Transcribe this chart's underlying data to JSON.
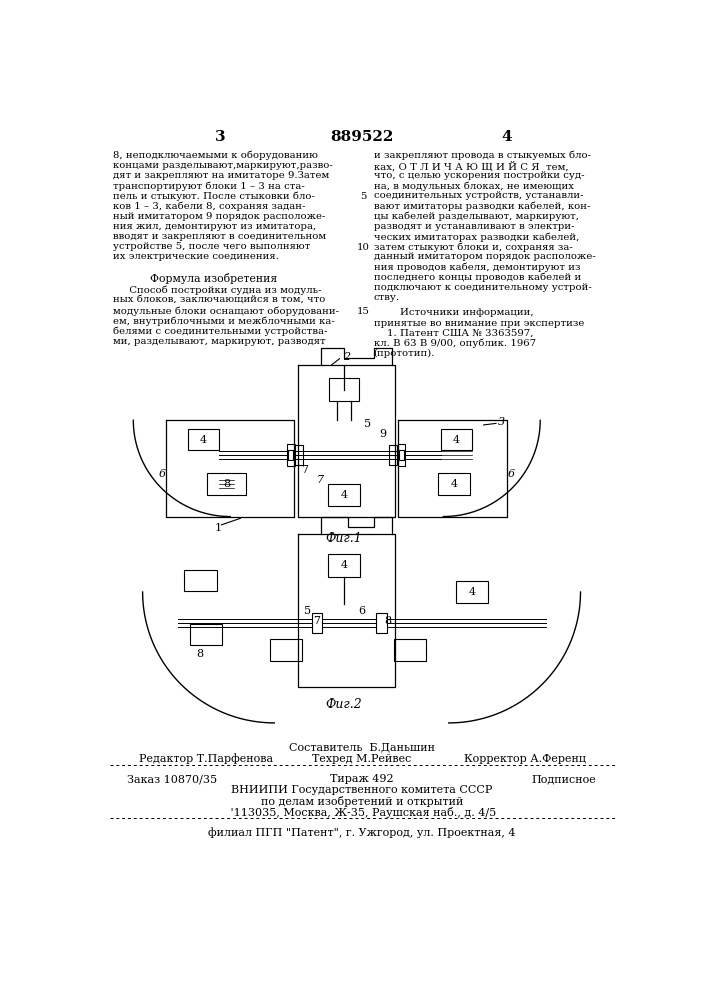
{
  "page_number_left": "3",
  "page_number_center": "889522",
  "page_number_right": "4",
  "bg_color": "#ffffff",
  "text_color": "#000000",
  "col1_lines": [
    "8, неподключаемыми к оборудованию",
    "концами разделывают,маркируют,разво-",
    "дят и закрепляют на имитаторе 9.Затем",
    "транспортируют блоки 1 – 3 на ста-",
    "пель и стыкуют. После стыковки бло-",
    "ков 1 – 3, кабели 8, сохраняя задан-",
    "ный имитатором 9 порядок расположе-",
    "ния жил, демонтируют из имитатора,",
    "вводят и закрепляют в соединительном",
    "устройстве 5, после чего выполняют",
    "их электрические соединения."
  ],
  "formula_header": "Формула изобретения",
  "formula_lines": [
    "     Способ постройки судна из модуль-",
    "ных блоков, заключающийся в том, что",
    "модульные блоки оснащают оборудовани-",
    "ем, внутриблочными и межблочными ка-",
    "белями с соединительными устройства-",
    "ми, разделывают, маркируют, разводят"
  ],
  "col2_lines": [
    "и закрепляют провода в стыкуемых бло-",
    "ках, О Т Л И Ч А Ю Щ И Й С Я  тем,",
    "что, с целью ускорения постройки суд-",
    "на, в модульных блоках, не имеющих",
    "соединительных устройств, устанавли-",
    "вают имитаторы разводки кабелей, кон-",
    "цы кабелей разделывают, маркируют,",
    "разводят и устанавливают в электри-",
    "ческих имитаторах разводки кабелей,",
    "затем стыкуют блоки и, сохраняя за-",
    "данный имитатором порядок расположе-",
    "ния проводов кабеля, демонтируют из",
    "последнего концы проводов кабелей и",
    "подключают к соединительному устрой-",
    "ству."
  ],
  "sources_header": "        Источники информации,",
  "sources_lines": [
    "принятые во внимание при экспертизе",
    "    1. Патент США № 3363597,",
    "кл. В 63 В 9/00, опублик. 1967",
    "(прототип)."
  ],
  "fig1_caption": "Фиг.1",
  "fig2_caption": "Фиг.2",
  "footer_composer": "Составитель  Б.Даньшин",
  "footer_editor": "Редактор Т.Парфенова",
  "footer_techred": "Техред М.Рейвес",
  "footer_corrector": "Корректор А.Ференц",
  "footer_order": "Заказ 10870/35",
  "footer_tirazh": "Тираж 492",
  "footer_podpis": "Подписное",
  "footer_vniipи": "ВНИИПИ Государственного комитета СССР",
  "footer_dela": "по делам изобретений и открытий",
  "footer_addr": " '113035, Москва, Ж-35, Раушская наб., д. 4/5",
  "footer_filial": "филиал ПГП \"Патент\", г. Ужгород, ул. Проектная, 4"
}
